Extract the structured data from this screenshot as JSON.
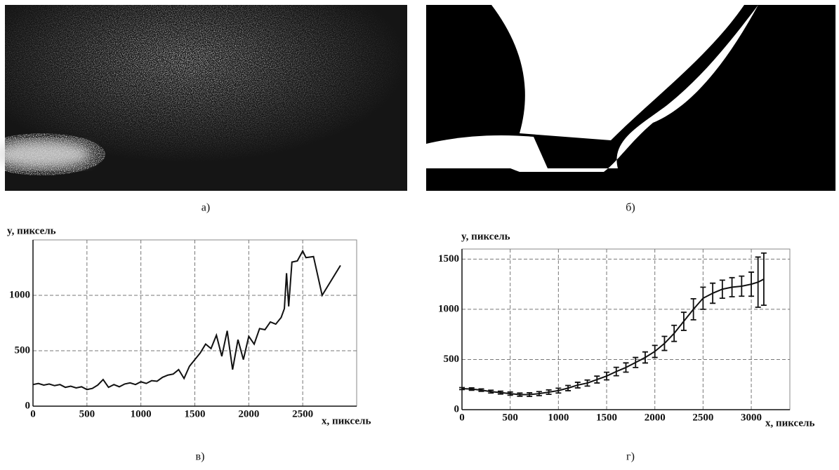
{
  "image_captions": [
    "а)",
    "б)"
  ],
  "chart_data": [
    {
      "type": "line",
      "caption": "в)",
      "x_label": "x, пиксель",
      "y_label": "y, пиксель",
      "color": "#111111",
      "grid": true,
      "xlim": [
        0,
        3000
      ],
      "ylim": [
        0,
        1500
      ],
      "xticks": [
        0,
        500,
        1000,
        1500,
        2000,
        2500
      ],
      "yticks": [
        0,
        500,
        1000
      ],
      "x": [
        0,
        50,
        100,
        150,
        200,
        250,
        300,
        350,
        400,
        450,
        500,
        550,
        600,
        650,
        700,
        750,
        800,
        850,
        900,
        950,
        1000,
        1050,
        1100,
        1150,
        1200,
        1250,
        1300,
        1350,
        1400,
        1450,
        1500,
        1550,
        1600,
        1650,
        1700,
        1750,
        1800,
        1850,
        1900,
        1950,
        2000,
        2050,
        2100,
        2150,
        2200,
        2250,
        2300,
        2330,
        2350,
        2370,
        2400,
        2450,
        2500,
        2530,
        2600,
        2680,
        2850
      ],
      "values": [
        195,
        205,
        190,
        200,
        185,
        195,
        170,
        180,
        165,
        175,
        150,
        160,
        190,
        240,
        170,
        195,
        175,
        200,
        210,
        195,
        220,
        205,
        230,
        225,
        260,
        280,
        290,
        330,
        250,
        360,
        420,
        480,
        560,
        520,
        640,
        450,
        680,
        330,
        600,
        420,
        630,
        560,
        700,
        690,
        760,
        740,
        800,
        880,
        1200,
        900,
        1300,
        1310,
        1400,
        1340,
        1350,
        1000,
        1270
      ]
    },
    {
      "type": "line",
      "caption": "г)",
      "x_label": "x, пиксель",
      "y_label": "y, пиксель",
      "color": "#111111",
      "grid": true,
      "xlim": [
        0,
        3400
      ],
      "ylim": [
        0,
        1600
      ],
      "xticks": [
        0,
        500,
        1000,
        1500,
        2000,
        2500,
        3000
      ],
      "yticks": [
        0,
        500,
        1000,
        1500
      ],
      "x": [
        0,
        100,
        200,
        300,
        400,
        500,
        600,
        700,
        800,
        900,
        1000,
        1100,
        1200,
        1300,
        1400,
        1500,
        1600,
        1700,
        1800,
        1900,
        2000,
        2100,
        2200,
        2300,
        2400,
        2500,
        2600,
        2700,
        2800,
        2900,
        3000,
        3070,
        3130
      ],
      "values": [
        210,
        205,
        195,
        180,
        170,
        160,
        150,
        150,
        160,
        175,
        190,
        215,
        245,
        265,
        300,
        335,
        380,
        420,
        470,
        520,
        580,
        660,
        760,
        880,
        1000,
        1110,
        1160,
        1200,
        1220,
        1230,
        1250,
        1270,
        1300
      ],
      "errors": [
        10,
        12,
        12,
        14,
        14,
        16,
        16,
        18,
        20,
        22,
        24,
        26,
        28,
        30,
        34,
        38,
        42,
        46,
        50,
        55,
        60,
        70,
        80,
        90,
        105,
        110,
        100,
        90,
        95,
        100,
        120,
        250,
        260
      ]
    }
  ]
}
